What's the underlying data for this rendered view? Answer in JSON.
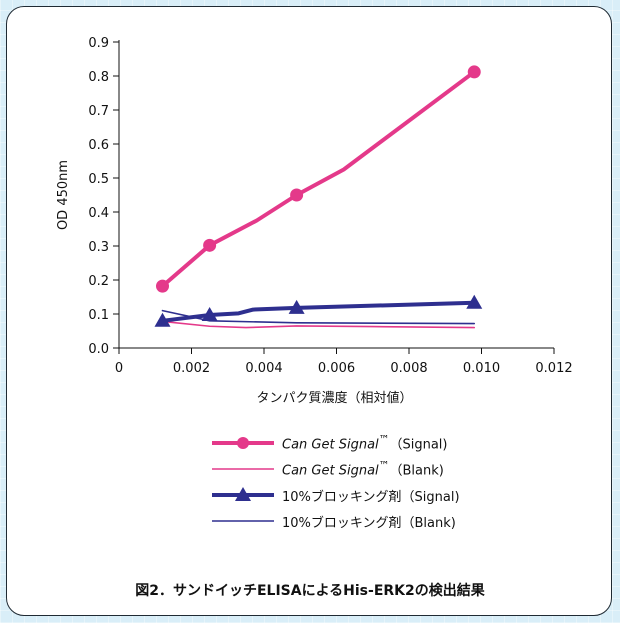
{
  "chart_data": {
    "type": "line",
    "xlabel": "タンパク質濃度（相対値）",
    "ylabel": "OD 450nm",
    "xlim": [
      0,
      0.012
    ],
    "ylim": [
      0,
      0.9
    ],
    "x_ticks": [
      "0",
      "0.002",
      "0.004",
      "0.006",
      "0.008",
      "0.010",
      "0.012"
    ],
    "y_ticks": [
      "0.0",
      "0.1",
      "0.2",
      "0.3",
      "0.4",
      "0.5",
      "0.6",
      "0.7",
      "0.8",
      "0.9"
    ],
    "series": [
      {
        "id": "cgs_signal",
        "name_italic": "Can Get Signal",
        "name_tm": "™",
        "name_suffix": "（Signal)",
        "color": "#e4398a",
        "marker": "circle",
        "line_weight": "thick",
        "points": [
          {
            "x": 0.0012,
            "y": 0.182,
            "marked": true
          },
          {
            "x": 0.0025,
            "y": 0.302,
            "marked": true
          },
          {
            "x": 0.0038,
            "y": 0.375,
            "marked": false
          },
          {
            "x": 0.0049,
            "y": 0.45,
            "marked": true
          },
          {
            "x": 0.0062,
            "y": 0.525,
            "marked": false
          },
          {
            "x": 0.0098,
            "y": 0.812,
            "marked": true
          }
        ]
      },
      {
        "id": "cgs_blank",
        "name_italic": "Can Get Signal",
        "name_tm": "™",
        "name_suffix": "（Blank)",
        "color": "#e4398a",
        "marker": "none",
        "line_weight": "thin",
        "points": [
          {
            "x": 0.0012,
            "y": 0.078
          },
          {
            "x": 0.0025,
            "y": 0.064
          },
          {
            "x": 0.0035,
            "y": 0.06
          },
          {
            "x": 0.0049,
            "y": 0.065
          },
          {
            "x": 0.007,
            "y": 0.063
          },
          {
            "x": 0.0098,
            "y": 0.06
          }
        ]
      },
      {
        "id": "block_signal",
        "name_text": "10%ブロッキング剤（Signal)",
        "color": "#2e2f8f",
        "marker": "triangle",
        "line_weight": "thick",
        "points": [
          {
            "x": 0.0012,
            "y": 0.08,
            "marked": true
          },
          {
            "x": 0.0025,
            "y": 0.097,
            "marked": true
          },
          {
            "x": 0.0033,
            "y": 0.102,
            "marked": false
          },
          {
            "x": 0.0037,
            "y": 0.113,
            "marked": false
          },
          {
            "x": 0.0049,
            "y": 0.118,
            "marked": true
          },
          {
            "x": 0.0098,
            "y": 0.133,
            "marked": true
          }
        ]
      },
      {
        "id": "block_blank",
        "name_text": "10%ブロッキング剤（Blank)",
        "color": "#2e2f8f",
        "marker": "none",
        "line_weight": "thin",
        "points": [
          {
            "x": 0.0012,
            "y": 0.11
          },
          {
            "x": 0.0025,
            "y": 0.08
          },
          {
            "x": 0.0049,
            "y": 0.074
          },
          {
            "x": 0.0098,
            "y": 0.072
          }
        ]
      }
    ],
    "caption": "図2．サンドイッチELISAによるHis-ERK2の検出結果"
  }
}
